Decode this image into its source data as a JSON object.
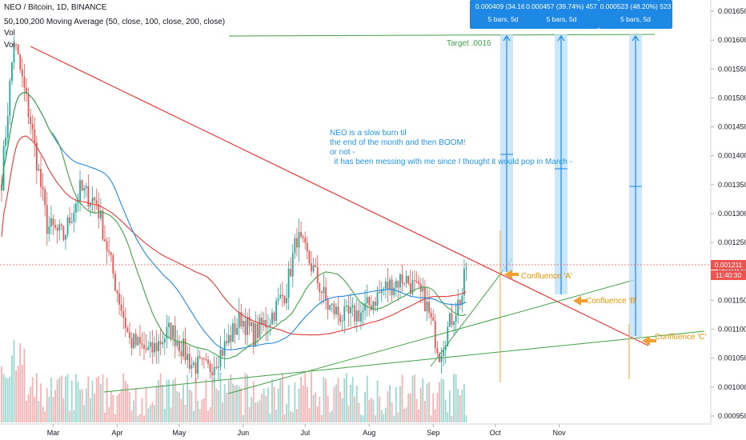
{
  "header": {
    "title": "NEO / Bitcoin, 1D, BINANCE",
    "ma_line": "50,100,200 Moving Average (50, close, 100, close, 200, close)",
    "vol1": "Vol",
    "vol2": "Vol"
  },
  "colors": {
    "up": "#26a69a",
    "down": "#ef5350",
    "ma50": "#43a047",
    "ma100": "#1e88e5",
    "ma200": "#e53935",
    "trend_red": "#e53935",
    "trend_green": "#43a047",
    "measure": "#2196f3",
    "confluence": "#f0a030"
  },
  "price_axis": {
    "ticks": [
      "0.001650",
      "0.001600",
      "0.001550",
      "0.001500",
      "0.001450",
      "0.001400",
      "0.001350",
      "0.001300",
      "0.001250",
      "0.001200",
      "0.001150",
      "0.001100",
      "0.001050",
      "0.001000",
      "0.000950"
    ],
    "last_price": "0.001211",
    "countdown": "11:40:30"
  },
  "time_axis": {
    "ticks": [
      "Mar",
      "Apr",
      "May",
      "Jun",
      "Jul",
      "Aug",
      "Sep",
      "Oct",
      "Nov"
    ]
  },
  "measures": [
    {
      "line1": "0.000409 (34.16%",
      "line2": "5 bars, 5d"
    },
    {
      "line1": "0.000457 (39.74%) 457",
      "line2": "5 bars, 5d"
    },
    {
      "line1": "0.000523 (48.20%) 523",
      "line2": "5 bars, 5d"
    }
  ],
  "annotations": {
    "target": "Target .0016",
    "note": "NEO is a slow burn til\nthe end of the month and then BOOM!\nor not -\n  it has been messing with me since I thought it would pop in March -",
    "confluence_a": "Confluence 'A'",
    "confluence_b": "Confluence 'B'",
    "confluence_c": "Confluence 'C'"
  },
  "chart_data": {
    "type": "candlestick",
    "symbol": "NEO / Bitcoin",
    "interval": "1D",
    "exchange": "BINANCE",
    "ylim": [
      0.00093,
      0.00168
    ],
    "target_price": 0.0016,
    "last_price": 0.001211,
    "anchor_points": [
      {
        "t": 0,
        "price": 0.00136
      },
      {
        "t": 6,
        "price": 0.0016
      },
      {
        "t": 14,
        "price": 0.00146
      },
      {
        "t": 22,
        "price": 0.00128
      },
      {
        "t": 30,
        "price": 0.00126
      },
      {
        "t": 38,
        "price": 0.00134
      },
      {
        "t": 46,
        "price": 0.00132
      },
      {
        "t": 55,
        "price": 0.00118
      },
      {
        "t": 62,
        "price": 0.00108
      },
      {
        "t": 72,
        "price": 0.00106
      },
      {
        "t": 82,
        "price": 0.0011
      },
      {
        "t": 92,
        "price": 0.00104
      },
      {
        "t": 100,
        "price": 0.00103
      },
      {
        "t": 108,
        "price": 0.00107
      },
      {
        "t": 116,
        "price": 0.00112
      },
      {
        "t": 122,
        "price": 0.00109
      },
      {
        "t": 130,
        "price": 0.00112
      },
      {
        "t": 138,
        "price": 0.00117
      },
      {
        "t": 143,
        "price": 0.00126
      },
      {
        "t": 150,
        "price": 0.00121
      },
      {
        "t": 158,
        "price": 0.00114
      },
      {
        "t": 166,
        "price": 0.00112
      },
      {
        "t": 175,
        "price": 0.00113
      },
      {
        "t": 185,
        "price": 0.00117
      },
      {
        "t": 195,
        "price": 0.00119
      },
      {
        "t": 205,
        "price": 0.00115
      },
      {
        "t": 212,
        "price": 0.00106
      },
      {
        "t": 218,
        "price": 0.00112
      },
      {
        "t": 223,
        "price": 0.00116
      },
      {
        "t": 225,
        "price": 0.00121
      }
    ]
  }
}
